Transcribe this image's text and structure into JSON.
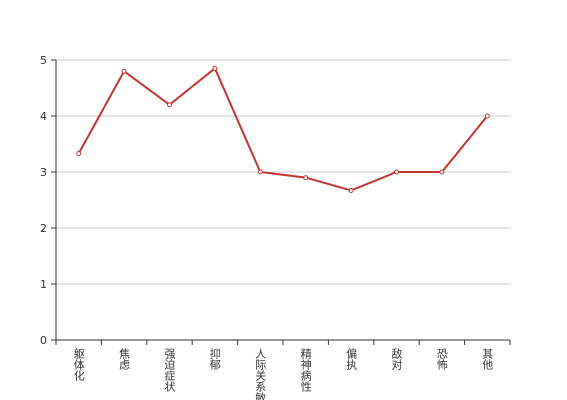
{
  "chart_data": {
    "type": "line",
    "categories": [
      "躯体化",
      "焦虑",
      "强迫症状",
      "抑郁",
      "人际关系敏感",
      "精神病性",
      "偏执",
      "敌对",
      "恐怖",
      "其他"
    ],
    "values": [
      3.33,
      4.8,
      4.2,
      4.85,
      3.0,
      2.9,
      2.67,
      3.0,
      3.0,
      4.0
    ],
    "color": "#c23531",
    "ylim": [
      0,
      5
    ],
    "yticks": [
      0,
      1,
      2,
      3,
      4,
      5
    ],
    "grid": true
  }
}
